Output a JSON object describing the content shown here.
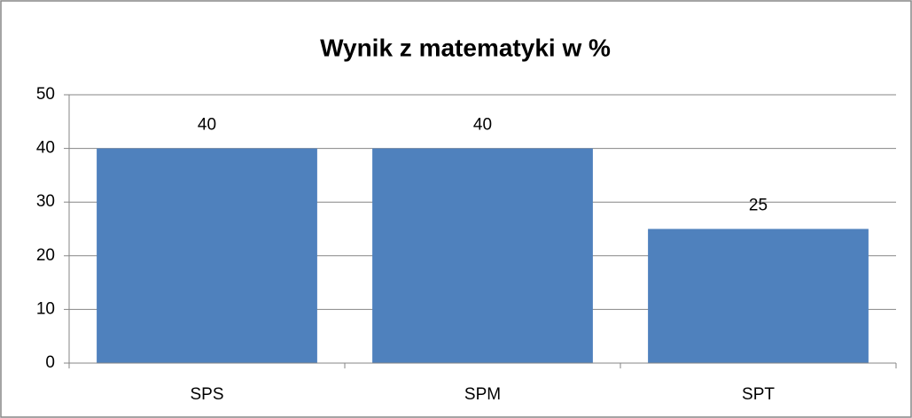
{
  "chart_data": {
    "type": "bar",
    "title": "Wynik z matematyki w %",
    "categories": [
      "SPS",
      "SPM",
      "SPT"
    ],
    "values": [
      40,
      40,
      25
    ],
    "color": "#4f81bd",
    "ylim": [
      0,
      50
    ],
    "yticks": [
      0,
      10,
      20,
      30,
      40,
      50
    ],
    "grid": true,
    "data_labels": true
  }
}
